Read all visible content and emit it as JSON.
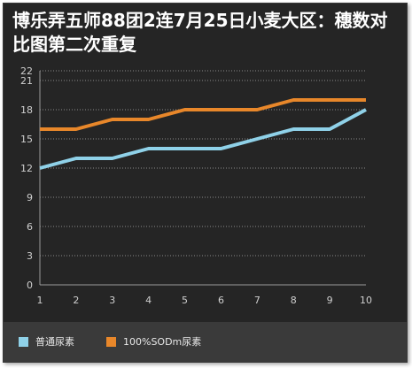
{
  "chart_data": {
    "type": "line",
    "title": "博乐弄五师88团2连7月25日小麦大区：穗数对比图第二次重复",
    "xlabel": "",
    "ylabel": "",
    "x": [
      1,
      2,
      3,
      4,
      5,
      6,
      7,
      8,
      9,
      10
    ],
    "yticks": [
      0,
      3,
      6,
      9,
      12,
      15,
      18,
      21,
      22
    ],
    "ylim": [
      0,
      22
    ],
    "grid": true,
    "legend_position": "bottom",
    "series": [
      {
        "name": "普通尿素",
        "color": "#8fd1e8",
        "values": [
          12,
          13,
          13,
          14,
          14,
          14,
          15,
          16,
          16,
          18
        ]
      },
      {
        "name": "100%SODm尿素",
        "color": "#e8872a",
        "values": [
          16,
          16,
          17,
          17,
          18,
          18,
          18,
          19,
          19,
          19
        ]
      }
    ]
  }
}
